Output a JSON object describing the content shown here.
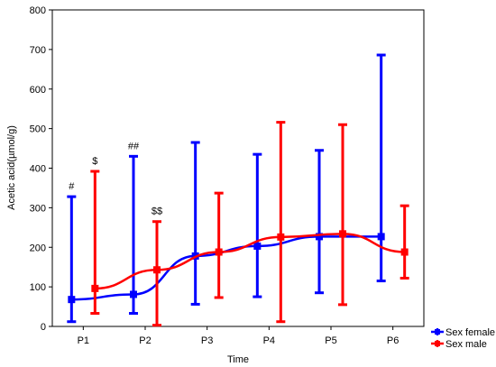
{
  "chart_data": {
    "type": "line",
    "xlabel": "Time",
    "ylabel": "Acetic acid(µmol/g)",
    "ylim": [
      0,
      800
    ],
    "yticks": [
      0,
      100,
      200,
      300,
      400,
      500,
      600,
      700,
      800
    ],
    "categories": [
      "P1",
      "P2",
      "P3",
      "P4",
      "P5",
      "P6"
    ],
    "grid": false,
    "legend_position": "bottom-right-outside",
    "series": [
      {
        "name": "Sex female",
        "color": "#0000ff",
        "marker": "square",
        "values": [
          68,
          81,
          178,
          203,
          227,
          227
        ],
        "error_low": [
          12,
          33,
          56,
          75,
          85,
          115
        ],
        "error_high": [
          328,
          430,
          465,
          435,
          445,
          686
        ]
      },
      {
        "name": "Sex male",
        "color": "#ff0000",
        "marker": "square",
        "values": [
          96,
          143,
          188,
          226,
          234,
          188
        ],
        "error_low": [
          33,
          3,
          73,
          12,
          55,
          122
        ],
        "error_high": [
          392,
          265,
          337,
          516,
          510,
          305
        ]
      }
    ],
    "annotations": [
      {
        "text": "#",
        "series": 0,
        "category": "P1"
      },
      {
        "text": "$",
        "series": 1,
        "category": "P1"
      },
      {
        "text": "##",
        "series": 0,
        "category": "P2"
      },
      {
        "text": "$$",
        "series": 1,
        "category": "P2"
      }
    ]
  }
}
